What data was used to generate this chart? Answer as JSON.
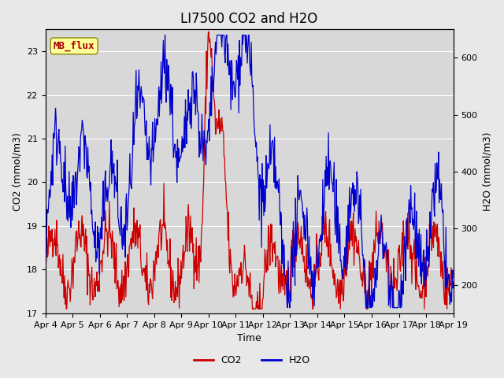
{
  "title": "LI7500 CO2 and H2O",
  "xlabel": "Time",
  "ylabel_left": "CO2 (mmol/m3)",
  "ylabel_right": "H2O (mmol/m3)",
  "co2_ylim": [
    17.0,
    23.5
  ],
  "h2o_ylim": [
    150,
    650
  ],
  "co2_color": "#cc0000",
  "h2o_color": "#0000cc",
  "background_color": "#e8e8e8",
  "plot_bg_color": "#d8d8d8",
  "annotation_text": "MB_flux",
  "annotation_bg": "#ffff99",
  "annotation_fg": "#aa0000",
  "x_tick_labels": [
    "Apr 4",
    "Apr 5",
    "Apr 6",
    "Apr 7",
    "Apr 8",
    "Apr 9",
    "Apr 10",
    "Apr 11",
    "Apr 12",
    "Apr 13",
    "Apr 14",
    "Apr 15",
    "Apr 16",
    "Apr 17",
    "Apr 18",
    "Apr 19"
  ],
  "legend_co2": "CO2",
  "legend_h2o": "H2O",
  "title_fontsize": 12,
  "axis_fontsize": 9,
  "tick_fontsize": 8,
  "legend_fontsize": 9
}
